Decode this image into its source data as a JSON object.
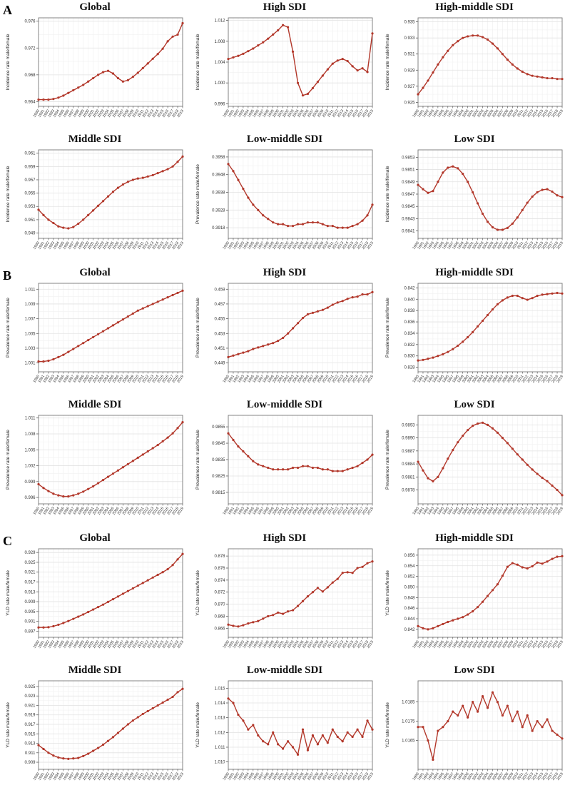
{
  "style": {
    "line_color": "#b2372a",
    "marker_color": "#b2372a",
    "grid_major": "#e2e2e2",
    "grid_minor": "#f1f1f1",
    "plot_border": "#777777",
    "background": "#ffffff"
  },
  "panel_labels": [
    "A",
    "B",
    "C"
  ],
  "years": [
    "1990",
    "1991",
    "1992",
    "1993",
    "1994",
    "1995",
    "1996",
    "1997",
    "1998",
    "1999",
    "2000",
    "2001",
    "2002",
    "2003",
    "2004",
    "2005",
    "2006",
    "2007",
    "2008",
    "2009",
    "2010",
    "2011",
    "2012",
    "2013",
    "2014",
    "2015",
    "2016",
    "2017",
    "2018",
    "2019"
  ],
  "chart_data": [
    {
      "panel": "A",
      "type": "line",
      "title": "Global",
      "ylabel": "Incidence rate male/female",
      "legend": false,
      "grid": true,
      "yticks": [
        "0.976",
        "0.972",
        "0.968",
        "0.964"
      ],
      "ylim": [
        0.9633,
        0.9765
      ],
      "values": [
        0.9643,
        0.9643,
        0.9643,
        0.9644,
        0.9646,
        0.9649,
        0.9653,
        0.9657,
        0.9661,
        0.9665,
        0.967,
        0.9675,
        0.968,
        0.9684,
        0.9686,
        0.9682,
        0.9675,
        0.967,
        0.9672,
        0.9677,
        0.9683,
        0.969,
        0.9697,
        0.9704,
        0.9711,
        0.9719,
        0.973,
        0.9737,
        0.974,
        0.9757
      ]
    },
    {
      "panel": "A",
      "type": "line",
      "title": "High SDI",
      "ylabel": "Incidence rate male/female",
      "legend": false,
      "grid": true,
      "yticks": [
        "1.012",
        "1.008",
        "1.004",
        "1.000",
        "0.996"
      ],
      "ylim": [
        0.9955,
        1.0125
      ],
      "values": [
        1.0046,
        1.0049,
        1.0052,
        1.0056,
        1.0061,
        1.0066,
        1.0072,
        1.0078,
        1.0085,
        1.0093,
        1.0101,
        1.0111,
        1.0107,
        1.006,
        1.0,
        0.9976,
        0.9979,
        0.999,
        1.0002,
        1.0014,
        1.0026,
        1.0037,
        1.0043,
        1.0046,
        1.0042,
        1.0032,
        1.0024,
        1.0028,
        1.0021,
        1.0095
      ]
    },
    {
      "panel": "A",
      "type": "line",
      "title": "High-middle SDI",
      "ylabel": "Incidence rate male/female",
      "legend": false,
      "grid": true,
      "yticks": [
        "0.935",
        "0.933",
        "0.931",
        "0.929",
        "0.927",
        "0.925"
      ],
      "ylim": [
        0.9245,
        0.9355
      ],
      "values": [
        0.926,
        0.9268,
        0.9277,
        0.9287,
        0.9297,
        0.9306,
        0.9314,
        0.9321,
        0.9326,
        0.933,
        0.9332,
        0.9333,
        0.9333,
        0.9331,
        0.9328,
        0.9323,
        0.9317,
        0.931,
        0.9303,
        0.9297,
        0.9292,
        0.9288,
        0.9285,
        0.9283,
        0.9282,
        0.9281,
        0.928,
        0.928,
        0.9279,
        0.9279
      ]
    },
    {
      "panel": "A",
      "type": "line",
      "title": "Middle SDI",
      "ylabel": "Incidence rate male/female",
      "legend": false,
      "grid": true,
      "yticks": [
        "0.961",
        "0.959",
        "0.957",
        "0.955",
        "0.953",
        "0.951",
        "0.949"
      ],
      "ylim": [
        0.9482,
        0.9615
      ],
      "values": [
        0.9525,
        0.9517,
        0.951,
        0.9505,
        0.95,
        0.9498,
        0.9497,
        0.9499,
        0.9504,
        0.951,
        0.9517,
        0.9524,
        0.9531,
        0.9538,
        0.9545,
        0.9552,
        0.9558,
        0.9563,
        0.9567,
        0.957,
        0.9572,
        0.9573,
        0.9575,
        0.9577,
        0.958,
        0.9583,
        0.9586,
        0.959,
        0.9597,
        0.9605
      ]
    },
    {
      "panel": "A",
      "type": "line",
      "title": "Low-middle SDI",
      "ylabel": "Prevalence rate male/female",
      "legend": false,
      "grid": true,
      "yticks": [
        "0.3958",
        "0.3948",
        "0.3938",
        "0.3928",
        "0.3918"
      ],
      "ylim": [
        0.3912,
        0.3962
      ],
      "values": [
        0.3954,
        0.395,
        0.3945,
        0.394,
        0.3935,
        0.3931,
        0.3928,
        0.3925,
        0.3923,
        0.3921,
        0.392,
        0.392,
        0.3919,
        0.3919,
        0.392,
        0.392,
        0.3921,
        0.3921,
        0.3921,
        0.392,
        0.3919,
        0.3919,
        0.3918,
        0.3918,
        0.3918,
        0.3919,
        0.392,
        0.3922,
        0.3925,
        0.3931
      ]
    },
    {
      "panel": "A",
      "type": "line",
      "title": "Low SDI",
      "ylabel": "Incidence rate male/female",
      "legend": false,
      "grid": true,
      "yticks": [
        "0.9853",
        "0.9851",
        "0.9849",
        "0.9847",
        "0.9845",
        "0.9843",
        "0.9841"
      ],
      "ylim": [
        0.98398,
        0.98542
      ],
      "values": [
        0.98485,
        0.98478,
        0.98472,
        0.98475,
        0.9849,
        0.98505,
        0.98513,
        0.98515,
        0.98512,
        0.98503,
        0.9849,
        0.98473,
        0.98455,
        0.98438,
        0.98425,
        0.98416,
        0.98412,
        0.98412,
        0.98415,
        0.98422,
        0.98432,
        0.98444,
        0.98456,
        0.98466,
        0.98473,
        0.98477,
        0.98478,
        0.98474,
        0.98468,
        0.98465
      ]
    },
    {
      "panel": "B",
      "type": "line",
      "title": "Global",
      "ylabel": "Prevalence rate male/female",
      "legend": false,
      "grid": true,
      "yticks": [
        "1.011",
        "1.009",
        "1.007",
        "1.005",
        "1.003",
        "1.001"
      ],
      "ylim": [
        0.9998,
        1.0118
      ],
      "values": [
        1.0012,
        1.0012,
        1.0013,
        1.0015,
        1.0018,
        1.0021,
        1.0025,
        1.0029,
        1.0033,
        1.0037,
        1.0041,
        1.0045,
        1.0049,
        1.0053,
        1.0057,
        1.0061,
        1.0065,
        1.0069,
        1.0073,
        1.0077,
        1.0081,
        1.0084,
        1.0087,
        1.009,
        1.0093,
        1.0096,
        1.0099,
        1.0102,
        1.0105,
        1.0108
      ]
    },
    {
      "panel": "B",
      "type": "line",
      "title": "High SDI",
      "ylabel": "Prevalence rate male/female",
      "legend": false,
      "grid": true,
      "yticks": [
        "0.459",
        "0.457",
        "0.455",
        "0.453",
        "0.451",
        "0.449"
      ],
      "ylim": [
        0.4478,
        0.4598
      ],
      "values": [
        0.4498,
        0.45,
        0.4502,
        0.4504,
        0.4506,
        0.4509,
        0.4511,
        0.4513,
        0.4515,
        0.4517,
        0.452,
        0.4524,
        0.453,
        0.4537,
        0.4544,
        0.4551,
        0.4556,
        0.4558,
        0.456,
        0.4562,
        0.4565,
        0.4569,
        0.4572,
        0.4574,
        0.4577,
        0.4579,
        0.458,
        0.4583,
        0.4583,
        0.4586
      ]
    },
    {
      "panel": "B",
      "type": "line",
      "title": "High-middle SDI",
      "ylabel": "Prevalence rate male/female",
      "legend": false,
      "grid": true,
      "yticks": [
        "0.842",
        "0.840",
        "0.838",
        "0.836",
        "0.834",
        "0.832",
        "0.830",
        "0.828"
      ],
      "ylim": [
        0.8272,
        0.8428
      ],
      "values": [
        0.8292,
        0.8293,
        0.8295,
        0.8297,
        0.83,
        0.8303,
        0.8307,
        0.8312,
        0.8318,
        0.8325,
        0.8333,
        0.8342,
        0.8352,
        0.8362,
        0.8372,
        0.8382,
        0.8391,
        0.8398,
        0.8403,
        0.8406,
        0.8406,
        0.8402,
        0.8399,
        0.8402,
        0.8406,
        0.8408,
        0.8409,
        0.841,
        0.8411,
        0.841
      ]
    },
    {
      "panel": "B",
      "type": "line",
      "title": "Middle SDI",
      "ylabel": "Prevalence rate male/female",
      "legend": false,
      "grid": true,
      "yticks": [
        "1.011",
        "1.008",
        "1.005",
        "1.002",
        "0.999",
        "0.996"
      ],
      "ylim": [
        0.9948,
        1.0115
      ],
      "values": [
        0.9985,
        0.9978,
        0.9972,
        0.9967,
        0.9964,
        0.9962,
        0.9962,
        0.9964,
        0.9967,
        0.9971,
        0.9976,
        0.9981,
        0.9987,
        0.9993,
        0.9999,
        1.0005,
        1.0011,
        1.0017,
        1.0023,
        1.0029,
        1.0035,
        1.0041,
        1.0047,
        1.0053,
        1.0059,
        1.0066,
        1.0073,
        1.0081,
        1.0091,
        1.0102
      ]
    },
    {
      "panel": "B",
      "type": "line",
      "title": "Low-middle SDI",
      "ylabel": "Prevalence rate male/female",
      "legend": false,
      "grid": true,
      "yticks": [
        "0.9855",
        "0.9845",
        "0.9835",
        "0.9825",
        "0.9815"
      ],
      "ylim": [
        0.9808,
        0.9862
      ],
      "values": [
        0.9851,
        0.9847,
        0.9843,
        0.984,
        0.9837,
        0.9834,
        0.9832,
        0.9831,
        0.983,
        0.9829,
        0.9829,
        0.9829,
        0.9829,
        0.983,
        0.983,
        0.9831,
        0.9831,
        0.983,
        0.983,
        0.9829,
        0.9829,
        0.9828,
        0.9828,
        0.9828,
        0.9829,
        0.983,
        0.9831,
        0.9833,
        0.9835,
        0.9838
      ]
    },
    {
      "panel": "B",
      "type": "line",
      "title": "Low SDI",
      "ylabel": "Prevalence rate male/female",
      "legend": false,
      "grid": true,
      "yticks": [
        "0.9893",
        "0.9890",
        "0.9887",
        "0.9884",
        "0.9881",
        "0.9878"
      ],
      "ylim": [
        0.98748,
        0.98952
      ],
      "values": [
        0.98845,
        0.98825,
        0.98807,
        0.988,
        0.9881,
        0.9883,
        0.98852,
        0.98872,
        0.9889,
        0.98905,
        0.98918,
        0.98928,
        0.98933,
        0.98935,
        0.9893,
        0.98922,
        0.98912,
        0.989,
        0.98888,
        0.98875,
        0.98862,
        0.9885,
        0.98838,
        0.98827,
        0.98817,
        0.98808,
        0.988,
        0.9879,
        0.9878,
        0.98768
      ]
    },
    {
      "panel": "C",
      "type": "line",
      "title": "Global",
      "ylabel": "YLD rate male/female",
      "legend": false,
      "grid": true,
      "yticks": [
        "0.929",
        "0.925",
        "0.921",
        "0.917",
        "0.913",
        "0.909",
        "0.905",
        "0.901",
        "0.897"
      ],
      "ylim": [
        0.8945,
        0.9305
      ],
      "values": [
        0.8985,
        0.8985,
        0.8986,
        0.899,
        0.8996,
        0.9003,
        0.9011,
        0.902,
        0.9029,
        0.9038,
        0.9048,
        0.9058,
        0.9068,
        0.9078,
        0.9089,
        0.91,
        0.9111,
        0.9122,
        0.9133,
        0.9144,
        0.9155,
        0.9166,
        0.9177,
        0.9188,
        0.9199,
        0.921,
        0.9222,
        0.9239,
        0.9262,
        0.9284
      ]
    },
    {
      "panel": "C",
      "type": "line",
      "title": "High SDI",
      "ylabel": "YLD rate male/female",
      "legend": false,
      "grid": true,
      "yticks": [
        "0.878",
        "0.876",
        "0.874",
        "0.872",
        "0.870",
        "0.868",
        "0.866"
      ],
      "ylim": [
        0.8645,
        0.8792
      ],
      "values": [
        0.8666,
        0.8664,
        0.8663,
        0.8665,
        0.8668,
        0.867,
        0.8672,
        0.8676,
        0.868,
        0.8682,
        0.8686,
        0.8684,
        0.8688,
        0.869,
        0.8697,
        0.8705,
        0.8713,
        0.872,
        0.8727,
        0.8721,
        0.8728,
        0.8736,
        0.8742,
        0.8752,
        0.8753,
        0.8752,
        0.876,
        0.8762,
        0.8768,
        0.8771
      ]
    },
    {
      "panel": "C",
      "type": "line",
      "title": "High-middle SDI",
      "ylabel": "YLD rate male/female",
      "legend": false,
      "grid": true,
      "yticks": [
        "0.856",
        "0.854",
        "0.852",
        "0.850",
        "0.848",
        "0.846",
        "0.844",
        "0.842"
      ],
      "ylim": [
        0.8405,
        0.8572
      ],
      "values": [
        0.8426,
        0.8422,
        0.842,
        0.8422,
        0.8426,
        0.843,
        0.8434,
        0.8437,
        0.844,
        0.8443,
        0.8448,
        0.8454,
        0.8462,
        0.8472,
        0.8483,
        0.8494,
        0.8505,
        0.8521,
        0.8538,
        0.8545,
        0.8542,
        0.8537,
        0.8535,
        0.8539,
        0.8546,
        0.8544,
        0.8548,
        0.8553,
        0.8557,
        0.8558
      ]
    },
    {
      "panel": "C",
      "type": "line",
      "title": "Middle SDI",
      "ylabel": "YLD rate male/female",
      "legend": false,
      "grid": true,
      "yticks": [
        "0.925",
        "0.923",
        "0.921",
        "0.919",
        "0.917",
        "0.915",
        "0.913",
        "0.911",
        "0.909"
      ],
      "ylim": [
        0.9075,
        0.9262
      ],
      "values": [
        0.9126,
        0.9118,
        0.911,
        0.9104,
        0.91,
        0.9098,
        0.9097,
        0.9098,
        0.9099,
        0.9103,
        0.9108,
        0.9114,
        0.912,
        0.9127,
        0.9135,
        0.9143,
        0.9152,
        0.9161,
        0.917,
        0.9178,
        0.9185,
        0.9192,
        0.9198,
        0.9204,
        0.921,
        0.9216,
        0.9222,
        0.9228,
        0.9238,
        0.9245
      ]
    },
    {
      "panel": "C",
      "type": "line",
      "title": "Low-middle SDI",
      "ylabel": "YLD rate male/female",
      "legend": false,
      "grid": true,
      "yticks": [
        "1.015",
        "1.014",
        "1.013",
        "1.012",
        "1.011",
        "1.010"
      ],
      "ylim": [
        1.0095,
        1.0155
      ],
      "values": [
        1.0143,
        1.014,
        1.0132,
        1.0128,
        1.0122,
        1.0125,
        1.0118,
        1.0114,
        1.0112,
        1.012,
        1.0112,
        1.0109,
        1.0114,
        1.011,
        1.0105,
        1.0122,
        1.0108,
        1.0118,
        1.0112,
        1.0118,
        1.0113,
        1.0122,
        1.0117,
        1.0114,
        1.012,
        1.0117,
        1.0122,
        1.0117,
        1.0128,
        1.0122
      ]
    },
    {
      "panel": "C",
      "type": "line",
      "title": "Low SDI",
      "ylabel": "YLD rate male/female",
      "legend": false,
      "grid": true,
      "yticks": [
        "1.0185",
        "1.0175",
        "1.0165"
      ],
      "ylim": [
        1.015,
        1.0196
      ],
      "values": [
        1.0172,
        1.0172,
        1.0165,
        1.0155,
        1.017,
        1.0172,
        1.0175,
        1.018,
        1.0178,
        1.0183,
        1.0177,
        1.0185,
        1.018,
        1.0188,
        1.0182,
        1.019,
        1.0185,
        1.0178,
        1.0183,
        1.0175,
        1.018,
        1.0172,
        1.0178,
        1.017,
        1.0175,
        1.0172,
        1.0176,
        1.017,
        1.0168,
        1.0166
      ]
    }
  ]
}
